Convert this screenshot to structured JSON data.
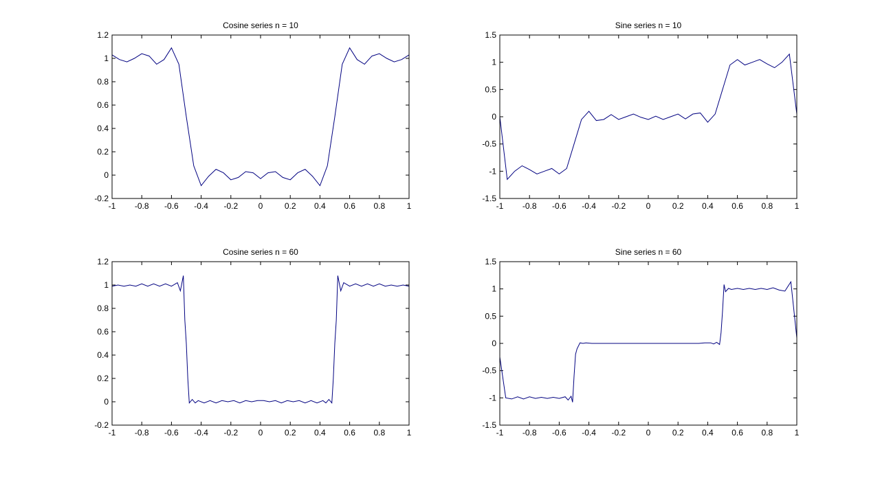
{
  "chart_data": [
    {
      "type": "line",
      "title": "Cosine series n = 10",
      "x": [
        -1,
        -0.95,
        -0.9,
        -0.85,
        -0.8,
        -0.75,
        -0.7,
        -0.65,
        -0.6,
        -0.55,
        -0.5,
        -0.45,
        -0.4,
        -0.35,
        -0.3,
        -0.25,
        -0.2,
        -0.15,
        -0.1,
        -0.05,
        0,
        0.05,
        0.1,
        0.15,
        0.2,
        0.25,
        0.3,
        0.35,
        0.4,
        0.45,
        0.5,
        0.55,
        0.6,
        0.65,
        0.7,
        0.75,
        0.8,
        0.85,
        0.9,
        0.95,
        1
      ],
      "series": [
        {
          "color": "#000080",
          "values": [
            1.03,
            0.99,
            0.97,
            1.0,
            1.04,
            1.02,
            0.95,
            0.99,
            1.09,
            0.95,
            0.5,
            0.08,
            -0.09,
            -0.01,
            0.05,
            0.02,
            -0.04,
            -0.02,
            0.03,
            0.02,
            -0.03,
            0.02,
            0.03,
            -0.02,
            -0.04,
            0.02,
            0.05,
            -0.01,
            -0.09,
            0.08,
            0.5,
            0.95,
            1.09,
            0.99,
            0.95,
            1.02,
            1.04,
            1.0,
            0.97,
            0.99,
            1.03
          ]
        }
      ],
      "xlim": [
        -1,
        1
      ],
      "xticks": [
        -1,
        -0.8,
        -0.6,
        -0.4,
        -0.2,
        0,
        0.2,
        0.4,
        0.6,
        0.8,
        1
      ],
      "ylim": [
        -0.2,
        1.2
      ],
      "yticks": [
        -0.2,
        0,
        0.2,
        0.4,
        0.6,
        0.8,
        1,
        1.2
      ],
      "grid": false
    },
    {
      "type": "line",
      "title": "Sine series n = 10",
      "x": [
        -1,
        -0.95,
        -0.9,
        -0.85,
        -0.8,
        -0.75,
        -0.7,
        -0.65,
        -0.6,
        -0.55,
        -0.5,
        -0.45,
        -0.4,
        -0.35,
        -0.3,
        -0.25,
        -0.2,
        -0.15,
        -0.1,
        -0.05,
        0,
        0.05,
        0.1,
        0.15,
        0.2,
        0.25,
        0.3,
        0.35,
        0.4,
        0.45,
        0.5,
        0.55,
        0.6,
        0.65,
        0.7,
        0.75,
        0.8,
        0.85,
        0.9,
        0.95,
        1
      ],
      "series": [
        {
          "color": "#000080",
          "values": [
            0,
            -1.15,
            -1.0,
            -0.9,
            -0.97,
            -1.05,
            -1.0,
            -0.95,
            -1.05,
            -0.95,
            -0.5,
            -0.05,
            0.1,
            -0.07,
            -0.05,
            0.04,
            -0.05,
            0.0,
            0.05,
            -0.01,
            -0.05,
            0.01,
            -0.05,
            0.0,
            0.05,
            -0.04,
            0.05,
            0.07,
            -0.1,
            0.05,
            0.5,
            0.95,
            1.05,
            0.95,
            1.0,
            1.05,
            0.97,
            0.9,
            1.0,
            1.15,
            0.05
          ]
        }
      ],
      "xlim": [
        -1,
        1
      ],
      "xticks": [
        -1,
        -0.8,
        -0.6,
        -0.4,
        -0.2,
        0,
        0.2,
        0.4,
        0.6,
        0.8,
        1
      ],
      "ylim": [
        -1.5,
        1.5
      ],
      "yticks": [
        -1.5,
        -1,
        -0.5,
        0,
        0.5,
        1,
        1.5
      ],
      "grid": false
    },
    {
      "type": "line",
      "title": "Cosine series n = 60",
      "x": [
        -1,
        -0.96,
        -0.92,
        -0.88,
        -0.84,
        -0.8,
        -0.76,
        -0.72,
        -0.68,
        -0.64,
        -0.6,
        -0.56,
        -0.54,
        -0.52,
        -0.51,
        -0.5,
        -0.49,
        -0.48,
        -0.46,
        -0.44,
        -0.42,
        -0.38,
        -0.34,
        -0.3,
        -0.26,
        -0.22,
        -0.18,
        -0.14,
        -0.1,
        -0.06,
        -0.02,
        0.02,
        0.06,
        0.1,
        0.14,
        0.18,
        0.22,
        0.26,
        0.3,
        0.34,
        0.38,
        0.42,
        0.44,
        0.46,
        0.48,
        0.49,
        0.5,
        0.51,
        0.52,
        0.54,
        0.56,
        0.6,
        0.64,
        0.68,
        0.72,
        0.76,
        0.8,
        0.84,
        0.88,
        0.92,
        0.96,
        1
      ],
      "series": [
        {
          "color": "#000080",
          "values": [
            0.99,
            1.0,
            0.99,
            1.0,
            0.99,
            1.01,
            0.99,
            1.01,
            0.99,
            1.01,
            0.99,
            1.02,
            0.95,
            1.08,
            0.7,
            0.5,
            0.2,
            -0.01,
            0.02,
            -0.01,
            0.01,
            -0.01,
            0.01,
            -0.01,
            0.01,
            0,
            0.01,
            -0.01,
            0.01,
            0,
            0.01,
            0.01,
            0,
            0.01,
            -0.01,
            0.01,
            0,
            0.01,
            -0.01,
            0.01,
            -0.01,
            0.01,
            -0.01,
            0.02,
            -0.01,
            0.2,
            0.5,
            0.7,
            1.08,
            0.95,
            1.02,
            0.99,
            1.01,
            0.99,
            1.01,
            0.99,
            1.01,
            0.99,
            1.0,
            0.99,
            1.0,
            0.99
          ]
        }
      ],
      "xlim": [
        -1,
        1
      ],
      "xticks": [
        -1,
        -0.8,
        -0.6,
        -0.4,
        -0.2,
        0,
        0.2,
        0.4,
        0.6,
        0.8,
        1
      ],
      "ylim": [
        -0.2,
        1.2
      ],
      "yticks": [
        -0.2,
        0,
        0.2,
        0.4,
        0.6,
        0.8,
        1,
        1.2
      ],
      "grid": false
    },
    {
      "type": "line",
      "title": "Sine series n = 60",
      "x": [
        -1,
        -0.96,
        -0.92,
        -0.88,
        -0.84,
        -0.8,
        -0.76,
        -0.72,
        -0.68,
        -0.64,
        -0.6,
        -0.56,
        -0.54,
        -0.52,
        -0.51,
        -0.5,
        -0.49,
        -0.48,
        -0.46,
        -0.44,
        -0.42,
        -0.38,
        -0.34,
        -0.3,
        -0.26,
        -0.22,
        -0.18,
        -0.14,
        -0.1,
        -0.06,
        -0.02,
        0.02,
        0.06,
        0.1,
        0.14,
        0.18,
        0.22,
        0.26,
        0.3,
        0.34,
        0.38,
        0.42,
        0.44,
        0.46,
        0.48,
        0.49,
        0.5,
        0.51,
        0.52,
        0.54,
        0.56,
        0.6,
        0.64,
        0.68,
        0.72,
        0.76,
        0.8,
        0.84,
        0.88,
        0.92,
        0.96,
        1
      ],
      "series": [
        {
          "color": "#000080",
          "values": [
            -0.25,
            -1.0,
            -1.02,
            -0.98,
            -1.02,
            -0.98,
            -1.01,
            -0.99,
            -1.01,
            -0.99,
            -1.01,
            -0.98,
            -1.04,
            -0.97,
            -1.08,
            -0.6,
            -0.2,
            -0.1,
            0.01,
            0,
            0.01,
            0,
            0,
            0,
            0,
            0,
            0,
            0,
            0,
            0,
            0,
            0,
            0,
            0,
            0,
            0,
            0,
            0,
            0,
            0,
            0.01,
            0.01,
            -0.01,
            0.02,
            -0.02,
            0.2,
            0.6,
            1.08,
            0.95,
            1.01,
            0.99,
            1.01,
            0.99,
            1.01,
            0.99,
            1.01,
            0.99,
            1.02,
            0.98,
            0.96,
            1.13,
            0.1
          ]
        }
      ],
      "xlim": [
        -1,
        1
      ],
      "xticks": [
        -1,
        -0.8,
        -0.6,
        -0.4,
        -0.2,
        0,
        0.2,
        0.4,
        0.6,
        0.8,
        1
      ],
      "ylim": [
        -1.5,
        1.5
      ],
      "yticks": [
        -1.5,
        -1,
        -0.5,
        0,
        0.5,
        1,
        1.5
      ],
      "grid": false
    }
  ]
}
